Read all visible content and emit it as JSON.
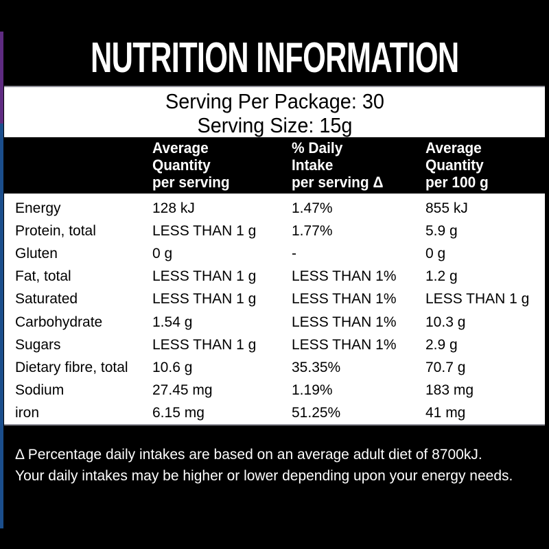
{
  "label": {
    "title": "NUTRITION INFORMATION",
    "serving": {
      "per_package": "Serving Per Package: 30",
      "size": "Serving Size: 15g"
    },
    "header": {
      "col_per_serving": {
        "line1": "Average",
        "line2": "Quantity",
        "line3": "per serving"
      },
      "col_daily_intake": {
        "line1": "% Daily",
        "line2": "Intake",
        "line3": "per serving Δ"
      },
      "col_per_100g": {
        "line1": "Average",
        "line2": "Quantity",
        "line3": "per 100 g"
      }
    },
    "rows": [
      {
        "nutrient": "Energy",
        "per_serving": "128 kJ",
        "daily_intake": "1.47%",
        "per_100g": "855 kJ"
      },
      {
        "nutrient": "Protein, total",
        "per_serving": "LESS THAN 1 g",
        "daily_intake": "1.77%",
        "per_100g": "5.9 g"
      },
      {
        "nutrient": "Gluten",
        "per_serving": "0 g",
        "daily_intake": "-",
        "per_100g": "0 g"
      },
      {
        "nutrient": "Fat, total",
        "per_serving": "LESS THAN 1 g",
        "daily_intake": "LESS THAN 1%",
        "per_100g": "1.2 g"
      },
      {
        "nutrient": "Saturated",
        "per_serving": "LESS THAN 1 g",
        "daily_intake": "LESS THAN 1%",
        "per_100g": "LESS THAN 1 g"
      },
      {
        "nutrient": "Carbohydrate",
        "per_serving": "1.54 g",
        "daily_intake": "LESS THAN 1%",
        "per_100g": "10.3 g"
      },
      {
        "nutrient": "Sugars",
        "per_serving": "LESS THAN 1 g",
        "daily_intake": "LESS THAN 1%",
        "per_100g": "2.9 g"
      },
      {
        "nutrient": "Dietary fibre, total",
        "per_serving": "10.6 g",
        "daily_intake": "35.35%",
        "per_100g": "70.7 g"
      },
      {
        "nutrient": "Sodium",
        "per_serving": "27.45 mg",
        "daily_intake": "1.19%",
        "per_100g": "183 mg"
      },
      {
        "nutrient": "iron",
        "per_serving": "6.15 mg",
        "daily_intake": "51.25%",
        "per_100g": "41 mg"
      }
    ],
    "footnote": {
      "line1": "Δ Percentage daily intakes are based on an average adult diet of 8700kJ.",
      "line2": "Your daily intakes may be higher or lower depending upon your energy needs."
    },
    "colors": {
      "background": "#000000",
      "panel": "#ffffff",
      "accent_purple": "#5e2b81",
      "accent_blue": "#1b4e8c",
      "title_text": "#ffffff"
    }
  }
}
